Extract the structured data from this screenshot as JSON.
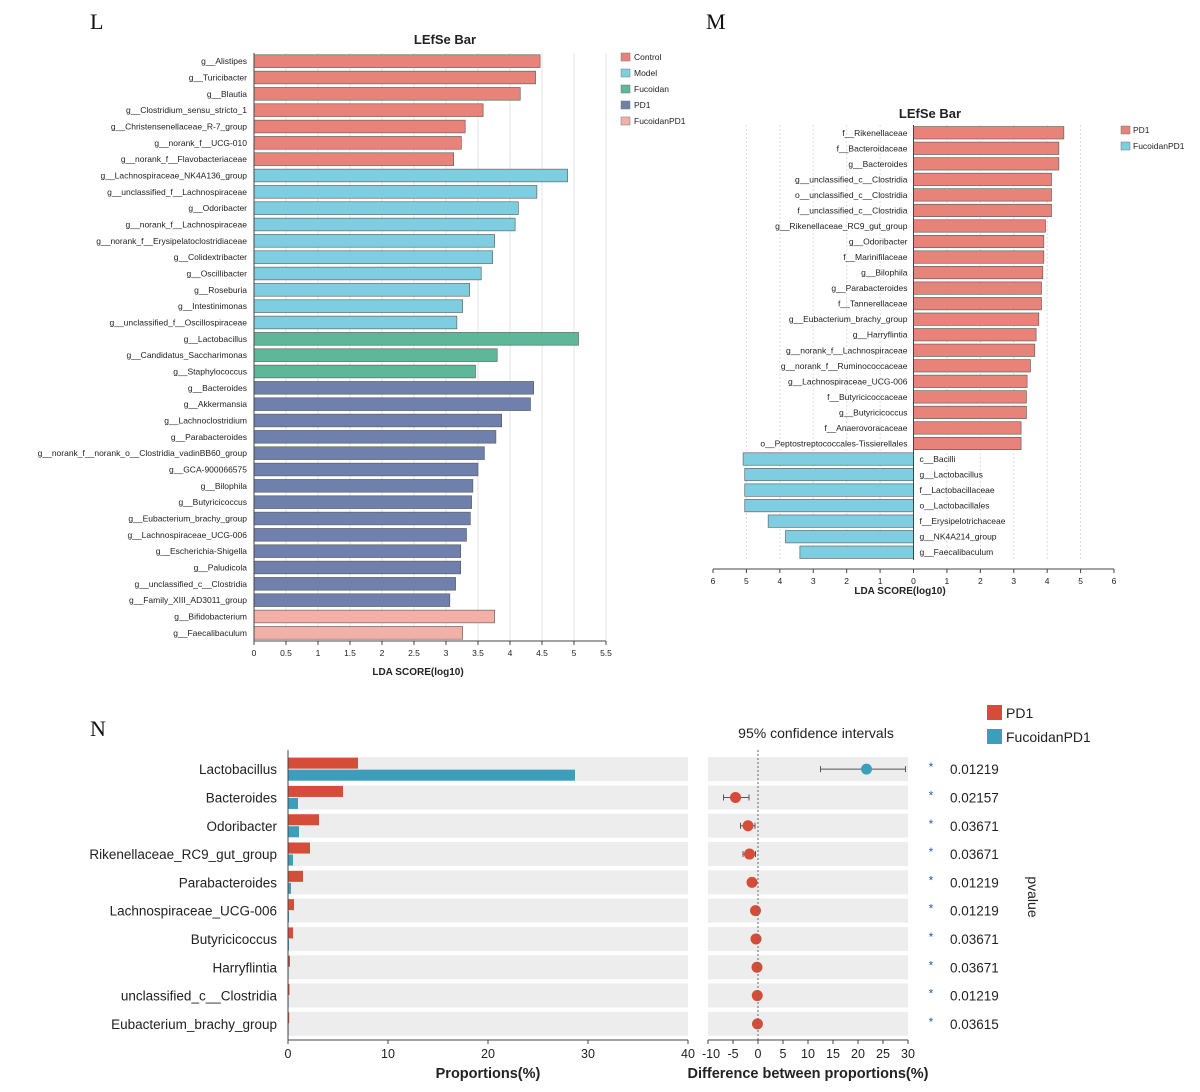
{
  "panel_labels": {
    "L": "L",
    "M": "M",
    "N": "N"
  },
  "colors": {
    "Control": "#e8837a",
    "Model": "#7ecde0",
    "Fucoidan": "#5fb79a",
    "PD1": "#6f80ad",
    "FucoidanPD1": "#f2b0a8",
    "M_PD1": "#e8837a",
    "M_FucoidanPD1": "#7ecde0",
    "N_PD1": "#d54d38",
    "N_FucoidanPD1": "#3d9ebc",
    "N_bg": "#ededed"
  },
  "chart_data": [
    {
      "id": "L",
      "type": "bar",
      "orientation": "horizontal",
      "title": "LEfSe Bar",
      "xlabel": "LDA SCORE(log10)",
      "xlim": [
        0,
        5.5
      ],
      "xticks": [
        "0",
        "0.5",
        "1",
        "1.5",
        "2",
        "2.5",
        "3",
        "3.5",
        "4",
        "4.5",
        "5",
        "5.5"
      ],
      "legend": [
        "Control",
        "Model",
        "Fucoidan",
        "PD1",
        "FucoidanPD1"
      ],
      "legend_position": "top-right",
      "bars": [
        {
          "label": "g__Alistipes",
          "value": 4.47,
          "group": "Control"
        },
        {
          "label": "g__Turicibacter",
          "value": 4.4,
          "group": "Control"
        },
        {
          "label": "g__Blautia",
          "value": 4.16,
          "group": "Control"
        },
        {
          "label": "g__Clostridium_sensu_stricto_1",
          "value": 3.58,
          "group": "Control"
        },
        {
          "label": "g__Christensenellaceae_R-7_group",
          "value": 3.3,
          "group": "Control"
        },
        {
          "label": "g__norank_f__UCG-010",
          "value": 3.24,
          "group": "Control"
        },
        {
          "label": "g__norank_f__Flavobacteriaceae",
          "value": 3.12,
          "group": "Control"
        },
        {
          "label": "g__Lachnospiraceae_NK4A136_group",
          "value": 4.9,
          "group": "Model"
        },
        {
          "label": "g__unclassified_f__Lachnospiraceae",
          "value": 4.42,
          "group": "Model"
        },
        {
          "label": "g__Odoribacter",
          "value": 4.13,
          "group": "Model"
        },
        {
          "label": "g__norank_f__Lachnospiraceae",
          "value": 4.08,
          "group": "Model"
        },
        {
          "label": "g__norank_f__Erysipelatoclostridiaceae",
          "value": 3.76,
          "group": "Model"
        },
        {
          "label": "g__Colidextribacter",
          "value": 3.73,
          "group": "Model"
        },
        {
          "label": "g__Oscillibacter",
          "value": 3.55,
          "group": "Model"
        },
        {
          "label": "g__Roseburia",
          "value": 3.37,
          "group": "Model"
        },
        {
          "label": "g__Intestinimonas",
          "value": 3.26,
          "group": "Model"
        },
        {
          "label": "g__unclassified_f__Oscillospiraceae",
          "value": 3.17,
          "group": "Model"
        },
        {
          "label": "g__Lactobacillus",
          "value": 5.07,
          "group": "Fucoidan"
        },
        {
          "label": "g__Candidatus_Saccharimonas",
          "value": 3.8,
          "group": "Fucoidan"
        },
        {
          "label": "g__Staphylococcus",
          "value": 3.46,
          "group": "Fucoidan"
        },
        {
          "label": "g__Bacteroides",
          "value": 4.37,
          "group": "PD1"
        },
        {
          "label": "g__Akkermansia",
          "value": 4.32,
          "group": "PD1"
        },
        {
          "label": "g__Lachnoclostridium",
          "value": 3.87,
          "group": "PD1"
        },
        {
          "label": "g__Parabacteroides",
          "value": 3.78,
          "group": "PD1"
        },
        {
          "label": "g__norank_f__norank_o__Clostridia_vadinBB60_group",
          "value": 3.6,
          "group": "PD1"
        },
        {
          "label": "g__GCA-900066575",
          "value": 3.5,
          "group": "PD1"
        },
        {
          "label": "g__Bilophila",
          "value": 3.42,
          "group": "PD1"
        },
        {
          "label": "g__Butyricicoccus",
          "value": 3.4,
          "group": "PD1"
        },
        {
          "label": "g__Eubacterium_brachy_group",
          "value": 3.38,
          "group": "PD1"
        },
        {
          "label": "g__Lachnospiraceae_UCG-006",
          "value": 3.32,
          "group": "PD1"
        },
        {
          "label": "g__Escherichia-Shigella",
          "value": 3.23,
          "group": "PD1"
        },
        {
          "label": "g__Paludicola",
          "value": 3.23,
          "group": "PD1"
        },
        {
          "label": "g__unclassified_c__Clostridia",
          "value": 3.15,
          "group": "PD1"
        },
        {
          "label": "g__Family_XIII_AD3011_group",
          "value": 3.06,
          "group": "PD1"
        },
        {
          "label": "g__Bifidobacterium",
          "value": 3.76,
          "group": "FucoidanPD1"
        },
        {
          "label": "g__Faecalibaculum",
          "value": 3.26,
          "group": "FucoidanPD1"
        }
      ]
    },
    {
      "id": "M",
      "type": "bar",
      "orientation": "horizontal-diverging",
      "title": "LEfSe Bar",
      "xlabel": "LDA SCORE(log10)",
      "xlim": [
        -6,
        6
      ],
      "xticks": [
        "6",
        "5",
        "4",
        "3",
        "2",
        "1",
        "0",
        "1",
        "2",
        "3",
        "4",
        "5",
        "6"
      ],
      "legend": [
        "PD1",
        "FucoidanPD1"
      ],
      "legend_position": "top-right",
      "bars": [
        {
          "label": "f__Rikenellaceae",
          "value": 4.5,
          "group": "PD1"
        },
        {
          "label": "f__Bacteroidaceae",
          "value": 4.35,
          "group": "PD1"
        },
        {
          "label": "g__Bacteroides",
          "value": 4.35,
          "group": "PD1"
        },
        {
          "label": "g__unclassified_c__Clostridia",
          "value": 4.13,
          "group": "PD1"
        },
        {
          "label": "o__unclassified_c__Clostridia",
          "value": 4.13,
          "group": "PD1"
        },
        {
          "label": "f__unclassified_c__Clostridia",
          "value": 4.13,
          "group": "PD1"
        },
        {
          "label": "g__Rikenellaceae_RC9_gut_group",
          "value": 3.95,
          "group": "PD1"
        },
        {
          "label": "g__Odoribacter",
          "value": 3.9,
          "group": "PD1"
        },
        {
          "label": "f__Marinifilaceae",
          "value": 3.9,
          "group": "PD1"
        },
        {
          "label": "g__Bilophila",
          "value": 3.87,
          "group": "PD1"
        },
        {
          "label": "g__Parabacteroides",
          "value": 3.83,
          "group": "PD1"
        },
        {
          "label": "f__Tannerellaceae",
          "value": 3.83,
          "group": "PD1"
        },
        {
          "label": "g__Eubacterium_brachy_group",
          "value": 3.75,
          "group": "PD1"
        },
        {
          "label": "g__Harryflintia",
          "value": 3.67,
          "group": "PD1"
        },
        {
          "label": "g__norank_f__Lachnospiraceae",
          "value": 3.63,
          "group": "PD1"
        },
        {
          "label": "g__norank_f__Ruminococcaceae",
          "value": 3.5,
          "group": "PD1"
        },
        {
          "label": "g__Lachnospiraceae_UCG-006",
          "value": 3.4,
          "group": "PD1"
        },
        {
          "label": "f__Butyricicoccaceae",
          "value": 3.38,
          "group": "PD1"
        },
        {
          "label": "g__Butyricicoccus",
          "value": 3.38,
          "group": "PD1"
        },
        {
          "label": "f__Anaerovoracaceae",
          "value": 3.22,
          "group": "PD1"
        },
        {
          "label": "o__Peptostreptococcales-Tissierellales",
          "value": 3.22,
          "group": "PD1"
        },
        {
          "label": "c__Bacilli",
          "value": 5.1,
          "group": "FucoidanPD1"
        },
        {
          "label": "g__Lactobacillus",
          "value": 5.05,
          "group": "FucoidanPD1"
        },
        {
          "label": "f__Lactobacillaceae",
          "value": 5.05,
          "group": "FucoidanPD1"
        },
        {
          "label": "o__Lactobacillales",
          "value": 5.05,
          "group": "FucoidanPD1"
        },
        {
          "label": "f__Erysipelotrichaceae",
          "value": 4.35,
          "group": "FucoidanPD1"
        },
        {
          "label": "g__NK4A214_group",
          "value": 3.83,
          "group": "FucoidanPD1"
        },
        {
          "label": "g__Faecalibaculum",
          "value": 3.4,
          "group": "FucoidanPD1"
        }
      ]
    },
    {
      "id": "N",
      "type": "bar",
      "subtype": "extended-error-bar",
      "xlabel_left": "Proportions(%)",
      "xlabel_right": "Difference between proportions(%)",
      "ci_title": "95% confidence intervals",
      "pvalue_label": "pvalue",
      "xlim_left": [
        0,
        40
      ],
      "xticks_left": [
        "0",
        "10",
        "20",
        "30",
        "40"
      ],
      "xlim_right": [
        -10,
        30
      ],
      "xticks_right": [
        "-10",
        "-5",
        "0",
        "5",
        "10",
        "15",
        "20",
        "25",
        "30"
      ],
      "legend": [
        "PD1",
        "FucoidanPD1"
      ],
      "legend_position": "top-right",
      "rows": [
        {
          "label": "Lactobacillus",
          "pd1": 7.0,
          "fucoidanpd1": 28.7,
          "diff": 21.7,
          "ci": [
            12.5,
            29.5
          ],
          "sig": "*",
          "pvalue": "0.01219"
        },
        {
          "label": "Bacteroides",
          "pd1": 5.5,
          "fucoidanpd1": 1.0,
          "diff": -4.5,
          "ci": [
            -6.9,
            -1.8
          ],
          "sig": "*",
          "pvalue": "0.02157"
        },
        {
          "label": "Odoribacter",
          "pd1": 3.1,
          "fucoidanpd1": 1.1,
          "diff": -2.0,
          "ci": [
            -3.5,
            -0.6
          ],
          "sig": "*",
          "pvalue": "0.03671"
        },
        {
          "label": "Rikenellaceae_RC9_gut_group",
          "pd1": 2.2,
          "fucoidanpd1": 0.5,
          "diff": -1.7,
          "ci": [
            -3.0,
            -0.5
          ],
          "sig": "*",
          "pvalue": "0.03671"
        },
        {
          "label": "Parabacteroides",
          "pd1": 1.5,
          "fucoidanpd1": 0.3,
          "diff": -1.2,
          "ci": [
            -2.0,
            -0.4
          ],
          "sig": "*",
          "pvalue": "0.01219"
        },
        {
          "label": "Lachnospiraceae_UCG-006",
          "pd1": 0.6,
          "fucoidanpd1": 0.1,
          "diff": -0.5,
          "ci": [
            -0.8,
            -0.2
          ],
          "sig": "*",
          "pvalue": "0.01219"
        },
        {
          "label": "Butyricicoccus",
          "pd1": 0.5,
          "fucoidanpd1": 0.1,
          "diff": -0.4,
          "ci": [
            -0.7,
            -0.1
          ],
          "sig": "*",
          "pvalue": "0.03671"
        },
        {
          "label": "Harryflintia",
          "pd1": 0.2,
          "fucoidanpd1": 0.03,
          "diff": -0.2,
          "ci": [
            -0.35,
            -0.05
          ],
          "sig": "*",
          "pvalue": "0.03671"
        },
        {
          "label": "unclassified_c__Clostridia",
          "pd1": 0.15,
          "fucoidanpd1": 0.03,
          "diff": -0.15,
          "ci": [
            -0.3,
            -0.03
          ],
          "sig": "*",
          "pvalue": "0.01219"
        },
        {
          "label": "Eubacterium_brachy_group",
          "pd1": 0.12,
          "fucoidanpd1": 0.02,
          "diff": -0.1,
          "ci": [
            -0.2,
            -0.02
          ],
          "sig": "*",
          "pvalue": "0.03615"
        }
      ]
    }
  ]
}
